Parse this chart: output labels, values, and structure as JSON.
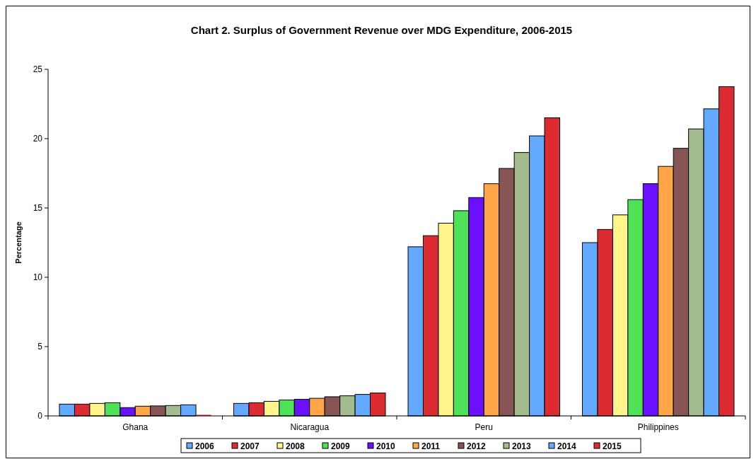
{
  "chart_data": {
    "type": "bar",
    "title": "Chart 2. Surplus of Government Revenue over MDG Expenditure, 2006-2015",
    "ylabel": "Percentage",
    "categories": [
      "Ghana",
      "Nicaragua",
      "Peru",
      "Philippines"
    ],
    "series": [
      {
        "name": "2006",
        "color": "#63a9ff",
        "values": [
          0.85,
          0.9,
          12.2,
          12.5
        ]
      },
      {
        "name": "2007",
        "color": "#dc2c32",
        "values": [
          0.85,
          0.95,
          13.0,
          13.45
        ]
      },
      {
        "name": "2008",
        "color": "#fff58a",
        "values": [
          0.9,
          1.05,
          13.9,
          14.5
        ]
      },
      {
        "name": "2009",
        "color": "#4ee356",
        "values": [
          0.95,
          1.15,
          14.8,
          15.6
        ]
      },
      {
        "name": "2010",
        "color": "#6a10fe",
        "values": [
          0.6,
          1.2,
          15.75,
          16.75
        ]
      },
      {
        "name": "2011",
        "color": "#ffa748",
        "values": [
          0.7,
          1.27,
          16.75,
          18.0
        ]
      },
      {
        "name": "2012",
        "color": "#875556",
        "values": [
          0.72,
          1.38,
          17.85,
          19.3
        ]
      },
      {
        "name": "2013",
        "color": "#a3bc8e",
        "values": [
          0.75,
          1.45,
          19.0,
          20.7
        ]
      },
      {
        "name": "2014",
        "color": "#63a9ff",
        "values": [
          0.8,
          1.55,
          20.2,
          22.15
        ]
      },
      {
        "name": "2015",
        "color": "#dc2c32",
        "values": [
          0.08,
          1.65,
          21.5,
          23.75
        ]
      }
    ],
    "ylim": [
      0,
      25
    ],
    "yticks": [
      0,
      5,
      10,
      15,
      20,
      25
    ],
    "grid": false,
    "legend": "bottom"
  }
}
